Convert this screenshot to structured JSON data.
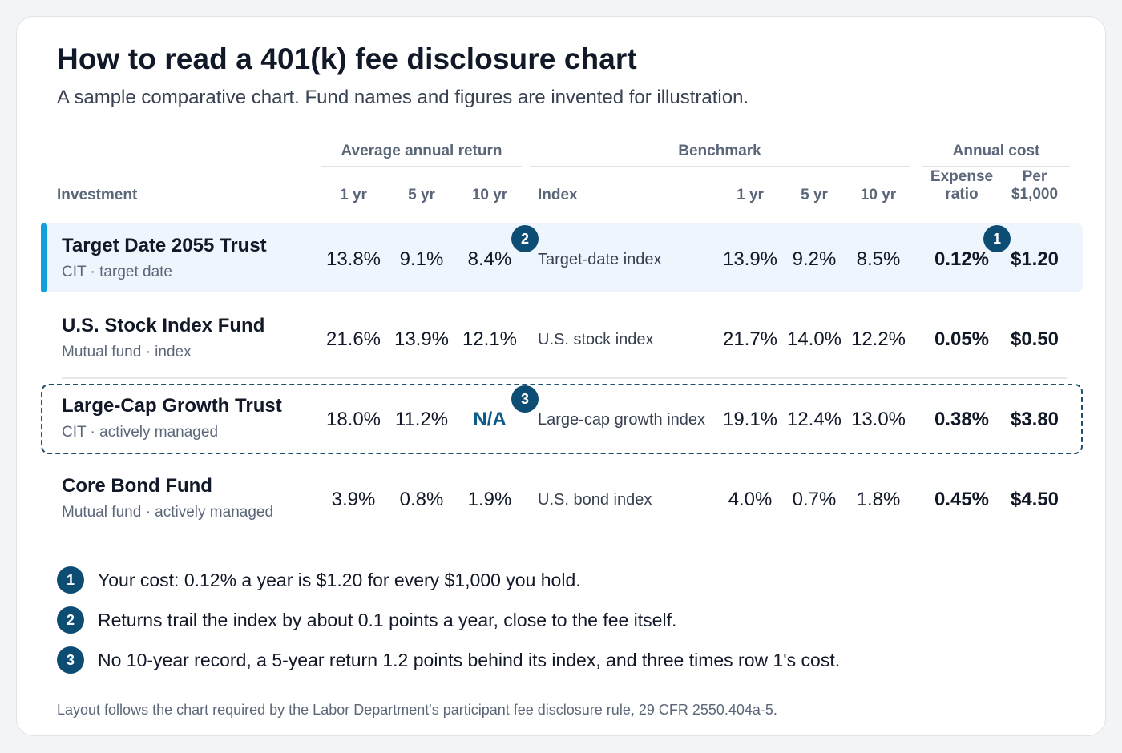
{
  "title": "How to read a 401(k) fee disclosure chart",
  "subtitle": "A sample comparative chart. Fund names and figures are invented for illustration.",
  "groups": {
    "returns": "Average annual return",
    "benchmark": "Benchmark",
    "cost": "Annual cost"
  },
  "columns": {
    "investment": "Investment",
    "r1": "1 yr",
    "r5": "5 yr",
    "r10": "10 yr",
    "index": "Index",
    "b1": "1 yr",
    "b5": "5 yr",
    "b10": "10 yr",
    "expense_l1": "Expense",
    "expense_l2": "ratio",
    "per_l1": "Per",
    "per_l2": "$1,000"
  },
  "rows": [
    {
      "name": "Target Date 2055 Trust",
      "sub": "CIT · target date",
      "r1": "13.8%",
      "r5": "9.1%",
      "r10": "8.4%",
      "index": "Target-date index",
      "b1": "13.9%",
      "b5": "9.2%",
      "b10": "8.5%",
      "expense": "0.12%",
      "per": "$1.20"
    },
    {
      "name": "U.S. Stock Index Fund",
      "sub": "Mutual fund · index",
      "r1": "21.6%",
      "r5": "13.9%",
      "r10": "12.1%",
      "index": "U.S. stock index",
      "b1": "21.7%",
      "b5": "14.0%",
      "b10": "12.2%",
      "expense": "0.05%",
      "per": "$0.50"
    },
    {
      "name": "Large-Cap Growth Trust",
      "sub": "CIT · actively managed",
      "r1": "18.0%",
      "r5": "11.2%",
      "r10": "N/A",
      "index": "Large-cap growth index",
      "b1": "19.1%",
      "b5": "12.4%",
      "b10": "13.0%",
      "expense": "0.38%",
      "per": "$3.80"
    },
    {
      "name": "Core Bond Fund",
      "sub": "Mutual fund · actively managed",
      "r1": "3.9%",
      "r5": "0.8%",
      "r10": "1.9%",
      "index": "U.S. bond index",
      "b1": "4.0%",
      "b5": "0.7%",
      "b10": "1.8%",
      "expense": "0.45%",
      "per": "$4.50"
    }
  ],
  "callouts": [
    {
      "num": "1",
      "text": "Your cost: 0.12% a year is $1.20 for every $1,000 you hold."
    },
    {
      "num": "2",
      "text": "Returns trail the index by about 0.1 points a year, close to the fee itself."
    },
    {
      "num": "3",
      "text": "No 10-year record, a 5-year return 1.2 points behind its index, and three times row 1's cost."
    }
  ],
  "footnote": "Layout follows the chart required by the Labor Department's participant fee disclosure rule, 29 CFR 2550.404a-5.",
  "colors": {
    "accent": "#12a0dc",
    "badge": "#0d4d74",
    "highlight_row": "#eef5fc",
    "na": "#0e5b88"
  }
}
